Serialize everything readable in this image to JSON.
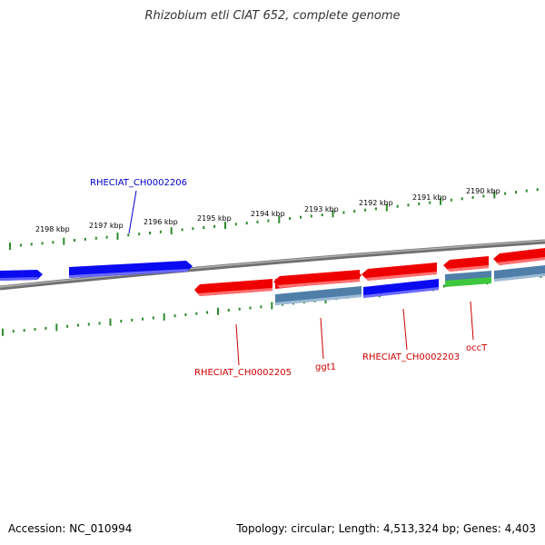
{
  "title": "Rhizobium etli CIAT 652, complete genome",
  "footer": {
    "accession": "Accession: NC_010994",
    "topology": "Topology: circular; Length: 4,513,324 bp; Genes: 4,403"
  },
  "colors": {
    "forward_gene": "#0a0af0",
    "reverse_gene": "#ee0000",
    "steelblue_gene": "#4f7fa8",
    "green_gene": "#3ec83e",
    "backbone": "#808080",
    "tick": "#2e8b2e",
    "forward_label": "#0000cc",
    "reverse_label": "#cc0000"
  },
  "scale_ticks": [
    "2198 kbp",
    "2197 kbp",
    "2196 kbp",
    "2195 kbp",
    "2194 kbp",
    "2193 kbp",
    "2192 kbp",
    "2191 kbp",
    "2190 kbp"
  ],
  "gene_labels": {
    "g2206": "RHECIAT_CH0002206",
    "g2205": "RHECIAT_CH0002205",
    "ggt1": "ggt1",
    "g2203": "RHECIAT_CH0002203",
    "occT": "occT"
  }
}
